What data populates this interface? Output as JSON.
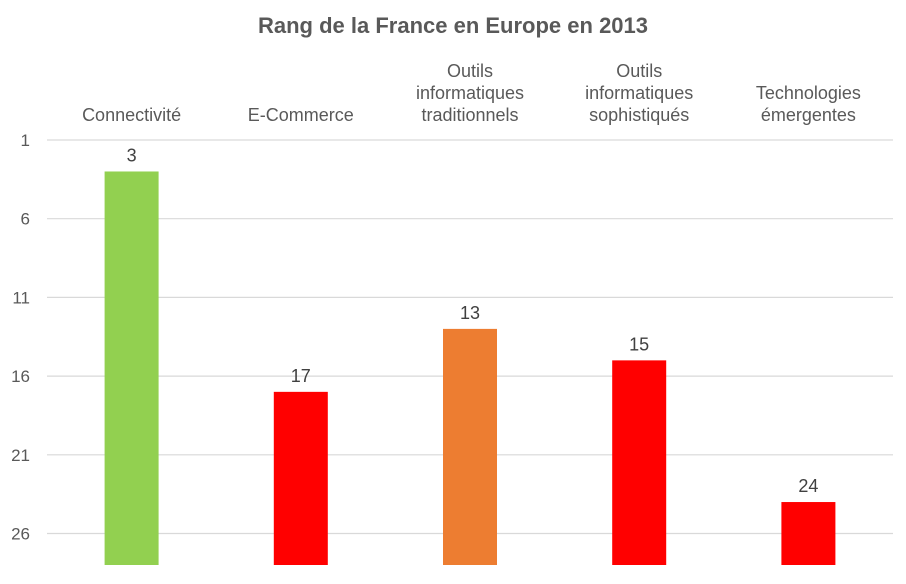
{
  "chart_data": {
    "type": "bar",
    "title": "Rang de la France en Europe en 2013",
    "xlabel": "",
    "ylabel": "",
    "y_axis_inverted": true,
    "ylim": [
      1,
      28
    ],
    "y_ticks": [
      1,
      6,
      11,
      16,
      21,
      26
    ],
    "grid": true,
    "legend": "none",
    "category_label_position": "top",
    "categories": [
      [
        "Connectivité"
      ],
      [
        "E-Commerce"
      ],
      [
        "Outils",
        "informatiques",
        "traditionnels"
      ],
      [
        "Outils",
        "informatiques",
        "sophistiqués"
      ],
      [
        "Technologies",
        "émergentes"
      ]
    ],
    "values": [
      3,
      17,
      13,
      15,
      24
    ],
    "bar_colors": [
      "#92d050",
      "#ff0000",
      "#ed7d31",
      "#ff0000",
      "#ff0000"
    ],
    "grid_color": "#d9d9d9",
    "text_color": "#595959"
  }
}
